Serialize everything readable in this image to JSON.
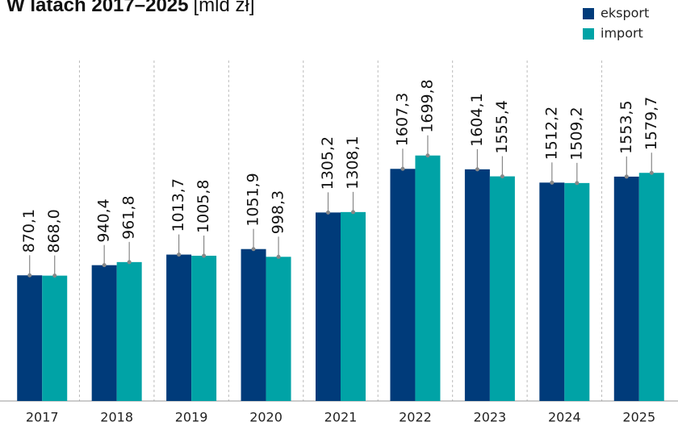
{
  "chart_data": {
    "type": "bar",
    "title": "W latach 2017–2025",
    "subtitle": "[mld zł]",
    "categories": [
      "2017",
      "2018",
      "2019",
      "2020",
      "2021",
      "2022",
      "2023",
      "2024",
      "2025"
    ],
    "series": [
      {
        "name": "eksport",
        "color": "#003b7a",
        "values": [
          870.1,
          940.4,
          1013.7,
          1051.9,
          1305.2,
          1607.3,
          1604.1,
          1512.2,
          1553.5
        ],
        "value_labels": [
          "870,1",
          "940,4",
          "1013,7",
          "1051,9",
          "1305,2",
          "1607,3",
          "1604,1",
          "1512,2",
          "1553,5"
        ]
      },
      {
        "name": "import",
        "color": "#00a3a6",
        "values": [
          868.0,
          961.8,
          1005.8,
          998.3,
          1308.1,
          1699.8,
          1555.4,
          1509.2,
          1579.7
        ],
        "value_labels": [
          "868,0",
          "961,8",
          "1005,8",
          "998,3",
          "1308,1",
          "1699,8",
          "1555,4",
          "1509,2",
          "1579,7"
        ]
      }
    ],
    "ylim": [
      0,
      2000
    ],
    "legend": "top-right"
  }
}
